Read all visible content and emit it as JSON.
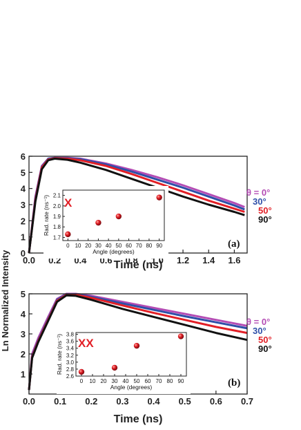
{
  "shared": {
    "ylabel": "Ln Normalized Intensity"
  },
  "chart_data": [
    {
      "type": "line",
      "panel_label": "(a)",
      "xlabel": "Time (ns)",
      "xlim": [
        0.0,
        1.7
      ],
      "ylim": [
        0,
        6
      ],
      "xticks": [
        "0.0",
        "0.2",
        "0.4",
        "0.6",
        "0.8",
        "1.0",
        "1.2",
        "1.4",
        "1.6"
      ],
      "yticks": [
        "0",
        "1",
        "2",
        "3",
        "4",
        "5",
        "6"
      ],
      "series": [
        {
          "name": "θ = 0°",
          "color": "#b44cb4",
          "x": [
            0.0,
            0.05,
            0.1,
            0.15,
            0.2,
            0.3,
            0.4,
            0.6,
            0.8,
            1.0,
            1.2,
            1.4,
            1.6,
            1.68
          ],
          "y": [
            0.0,
            3.5,
            5.4,
            5.85,
            5.9,
            5.9,
            5.85,
            5.55,
            5.15,
            4.7,
            4.2,
            3.65,
            3.1,
            2.85
          ]
        },
        {
          "name": "30°",
          "color": "#2f4fa8",
          "x": [
            0.0,
            0.05,
            0.1,
            0.15,
            0.2,
            0.3,
            0.4,
            0.6,
            0.8,
            1.0,
            1.2,
            1.4,
            1.6,
            1.68
          ],
          "y": [
            0.0,
            3.4,
            5.35,
            5.85,
            5.9,
            5.88,
            5.82,
            5.5,
            5.05,
            4.55,
            4.05,
            3.5,
            2.95,
            2.7
          ]
        },
        {
          "name": "50°",
          "color": "#e21f26",
          "x": [
            0.0,
            0.05,
            0.1,
            0.15,
            0.2,
            0.3,
            0.4,
            0.6,
            0.8,
            1.0,
            1.2,
            1.4,
            1.6,
            1.68
          ],
          "y": [
            0.0,
            3.3,
            5.3,
            5.8,
            5.88,
            5.85,
            5.75,
            5.4,
            4.9,
            4.35,
            3.8,
            3.25,
            2.75,
            2.55
          ]
        },
        {
          "name": "90°",
          "color": "#111111",
          "x": [
            0.0,
            0.05,
            0.1,
            0.15,
            0.2,
            0.3,
            0.4,
            0.6,
            0.8,
            1.0,
            1.2,
            1.4,
            1.6,
            1.68
          ],
          "y": [
            0.0,
            3.2,
            5.2,
            5.75,
            5.85,
            5.78,
            5.6,
            5.15,
            4.6,
            4.05,
            3.5,
            3.0,
            2.55,
            2.35
          ]
        }
      ],
      "inset": {
        "type": "scatter",
        "marker_label": "X",
        "xlabel": "Angle (degrees)",
        "ylabel": "Rad. rate (ns⁻¹)",
        "xlim": [
          -5,
          95
        ],
        "ylim": [
          1.67,
          2.15
        ],
        "xticks": [
          "0",
          "10",
          "20",
          "30",
          "40",
          "50",
          "60",
          "70",
          "80",
          "90"
        ],
        "yticks": [
          "1.7",
          "1.8",
          "1.9",
          "2.0",
          "2.1"
        ],
        "points": [
          {
            "x": 0,
            "y": 1.73
          },
          {
            "x": 30,
            "y": 1.84
          },
          {
            "x": 50,
            "y": 1.9
          },
          {
            "x": 90,
            "y": 2.08
          }
        ]
      }
    },
    {
      "type": "line",
      "panel_label": "(b)",
      "xlabel": "Time (ns)",
      "xlim": [
        0.0,
        0.7
      ],
      "ylim": [
        0,
        5
      ],
      "xticks": [
        "0.0",
        "0.1",
        "0.2",
        "0.3",
        "0.4",
        "0.5",
        "0.6",
        "0.7"
      ],
      "yticks": [
        "1",
        "2",
        "3",
        "4",
        "5"
      ],
      "series": [
        {
          "name": "θ = 0°",
          "color": "#b44cb4",
          "x": [
            0.0,
            0.01,
            0.03,
            0.06,
            0.09,
            0.12,
            0.15,
            0.2,
            0.3,
            0.4,
            0.5,
            0.6,
            0.7
          ],
          "y": [
            0.2,
            2.0,
            2.8,
            3.8,
            4.75,
            5.0,
            5.0,
            4.9,
            4.6,
            4.3,
            4.0,
            3.7,
            3.4
          ]
        },
        {
          "name": "30°",
          "color": "#2f4fa8",
          "x": [
            0.0,
            0.01,
            0.03,
            0.06,
            0.09,
            0.12,
            0.15,
            0.2,
            0.3,
            0.4,
            0.5,
            0.6,
            0.7
          ],
          "y": [
            0.2,
            1.9,
            2.7,
            3.7,
            4.7,
            4.98,
            4.98,
            4.85,
            4.52,
            4.2,
            3.88,
            3.58,
            3.28
          ]
        },
        {
          "name": "50°",
          "color": "#e21f26",
          "x": [
            0.0,
            0.01,
            0.03,
            0.06,
            0.09,
            0.12,
            0.15,
            0.2,
            0.3,
            0.4,
            0.5,
            0.6,
            0.7
          ],
          "y": [
            0.2,
            1.85,
            2.65,
            3.65,
            4.65,
            4.95,
            4.95,
            4.8,
            4.42,
            4.05,
            3.7,
            3.35,
            3.05
          ]
        },
        {
          "name": "90°",
          "color": "#111111",
          "x": [
            0.0,
            0.01,
            0.03,
            0.06,
            0.09,
            0.12,
            0.15,
            0.2,
            0.3,
            0.4,
            0.5,
            0.6,
            0.7
          ],
          "y": [
            0.2,
            1.8,
            2.6,
            3.6,
            4.6,
            4.92,
            4.9,
            4.7,
            4.25,
            3.85,
            3.45,
            3.05,
            2.7
          ]
        }
      ],
      "inset": {
        "type": "scatter",
        "marker_label": "XX",
        "xlabel": "Angle (degrees)",
        "ylabel": "Rad. rate (ns⁻¹)",
        "xlim": [
          -5,
          95
        ],
        "ylim": [
          2.6,
          3.85
        ],
        "xticks": [
          "0",
          "10",
          "20",
          "30",
          "40",
          "50",
          "60",
          "70",
          "80",
          "90"
        ],
        "yticks": [
          "2.6",
          "2.8",
          "3.0",
          "3.2",
          "3.4",
          "3.6",
          "3.8"
        ],
        "points": [
          {
            "x": 0,
            "y": 2.72
          },
          {
            "x": 30,
            "y": 2.84
          },
          {
            "x": 50,
            "y": 3.47
          },
          {
            "x": 90,
            "y": 3.74
          }
        ]
      }
    }
  ]
}
